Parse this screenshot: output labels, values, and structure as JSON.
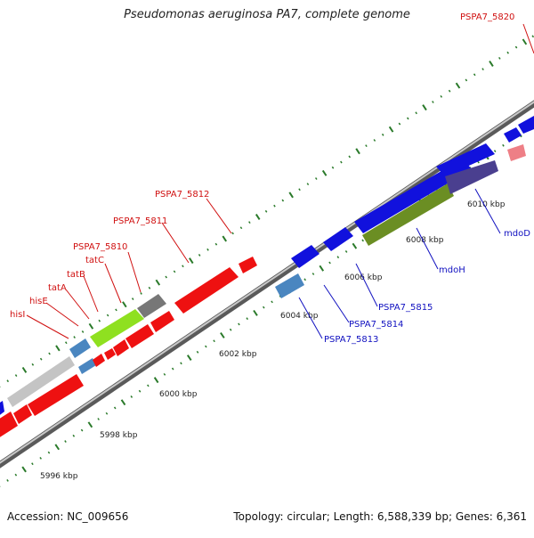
{
  "title": "Pseudomonas aeruginosa PA7, complete genome",
  "footer": {
    "accession": "Accession: NC_009656",
    "topology": "Topology: circular; Length: 6,588,339 bp; Genes: 6,361"
  },
  "colors": {
    "backbone": "#9a9a9a",
    "tick": "#2a7a2a",
    "red_gene": "#ee1111",
    "blue_gene": "#1111dd",
    "steel_gene": "#4a86c0",
    "gray_gene": "#777777",
    "light_gray_gene": "#c4c4c4",
    "lime_gene": "#8fe020",
    "olive_gene": "#6b8e23",
    "purple_gene": "#4a3f8f",
    "pink_gene": "#ee7f86",
    "red_label": "#d01010",
    "blue_label": "#1010c0"
  },
  "kbp_labels": [
    "5996 kbp",
    "5998 kbp",
    "6000 kbp",
    "6002 kbp",
    "6004 kbp",
    "6006 kbp",
    "6008 kbp",
    "6010 kbp"
  ],
  "gene_labels": [
    {
      "text": "hisI",
      "color": "red"
    },
    {
      "text": "hisE",
      "color": "red"
    },
    {
      "text": "tatA",
      "color": "red"
    },
    {
      "text": "tatB",
      "color": "red"
    },
    {
      "text": "tatC",
      "color": "red"
    },
    {
      "text": "PSPA7_5810",
      "color": "red"
    },
    {
      "text": "PSPA7_5811",
      "color": "red"
    },
    {
      "text": "PSPA7_5812",
      "color": "red"
    },
    {
      "text": "PSPA7_5820",
      "color": "red"
    },
    {
      "text": "PSPA7_5813",
      "color": "blue"
    },
    {
      "text": "PSPA7_5814",
      "color": "blue"
    },
    {
      "text": "PSPA7_5815",
      "color": "blue"
    },
    {
      "text": "mdoH",
      "color": "blue"
    },
    {
      "text": "mdoD",
      "color": "blue"
    }
  ]
}
